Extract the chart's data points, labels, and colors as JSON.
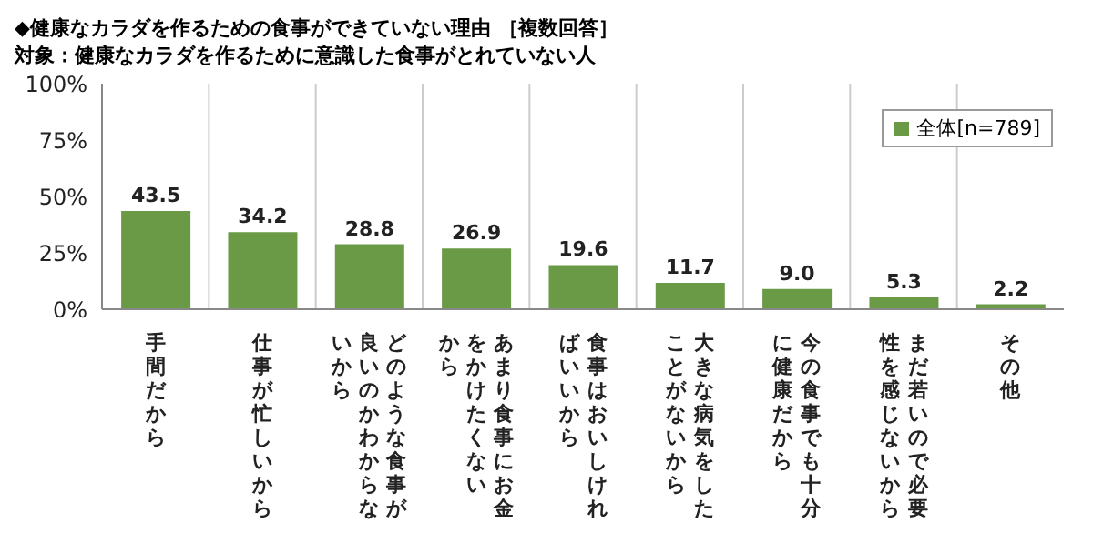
{
  "chart_data": {
    "type": "bar",
    "title": "◆健康なカラダを作るための食事ができていない理由 ［複数回答］",
    "subtitle": "対象：健康なカラダを作るために意識した食事がとれていない人",
    "categories": [
      "手間だから",
      "仕事が忙しいから",
      "どのような食事が良いのかわからないから",
      "あまり食事にお金をかけたくないから",
      "食事はおいしければいいから",
      "大きな病気をしたことがないから",
      "今の食事でも十分に健康だから",
      "まだ若いので必要性を感じないから",
      "その他"
    ],
    "series": [
      {
        "name": "全体[n=789]",
        "color": "#6a9a46",
        "values": [
          43.5,
          34.2,
          28.8,
          26.9,
          19.6,
          11.7,
          9.0,
          5.3,
          2.2
        ],
        "value_labels": [
          "43.5",
          "34.2",
          "28.8",
          "26.9",
          "19.6",
          "11.7",
          "9.0",
          "5.3",
          "2.2"
        ]
      }
    ],
    "ylim": [
      0,
      100
    ],
    "yticks": [
      {
        "value": 0,
        "label": "0%"
      },
      {
        "value": 25,
        "label": "25%"
      },
      {
        "value": 50,
        "label": "50%"
      },
      {
        "value": 75,
        "label": "75%"
      },
      {
        "value": 100,
        "label": "100%"
      }
    ],
    "grid": "x",
    "legend": "top right"
  }
}
